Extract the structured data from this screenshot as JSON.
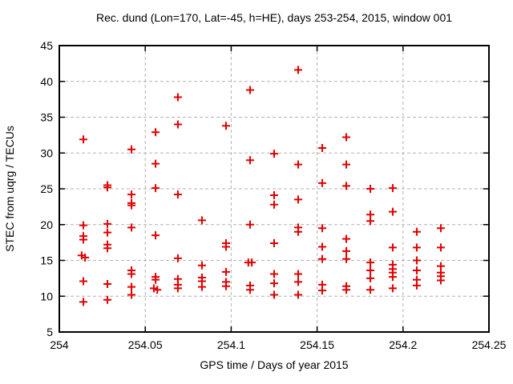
{
  "chart_data": {
    "type": "scatter",
    "title": "Rec. dund (Lon=170, Lat=-45, h=HE), days 253-254, 2015, window 001",
    "xlabel": "GPS time / Days of year 2015",
    "ylabel": "STEC from uqrg / TECUs",
    "xlim": [
      254.0,
      254.25
    ],
    "ylim": [
      5,
      45
    ],
    "grid": true,
    "legend_position": "none",
    "marker": "plus",
    "marker_color": "#e00000",
    "grid_color": "#b2b2b2",
    "xticks": {
      "values": [
        254.0,
        254.05,
        254.1,
        254.15,
        254.2,
        254.25
      ],
      "labels": [
        "254",
        "254.05",
        "254.1",
        "254.15",
        "254.2",
        "254.25"
      ]
    },
    "yticks": {
      "values": [
        5,
        10,
        15,
        20,
        25,
        30,
        35,
        40,
        45
      ],
      "labels": [
        "5",
        "10",
        "15",
        "20",
        "25",
        "30",
        "35",
        "40",
        "45"
      ]
    },
    "points": [
      [
        254.014,
        31.9
      ],
      [
        254.014,
        19.9
      ],
      [
        254.014,
        18.4
      ],
      [
        254.014,
        17.9
      ],
      [
        254.013,
        15.7
      ],
      [
        254.015,
        15.4
      ],
      [
        254.014,
        12.1
      ],
      [
        254.014,
        9.2
      ],
      [
        254.028,
        25.5
      ],
      [
        254.028,
        25.2
      ],
      [
        254.028,
        20.1
      ],
      [
        254.028,
        18.9
      ],
      [
        254.028,
        17.2
      ],
      [
        254.028,
        16.7
      ],
      [
        254.028,
        11.7
      ],
      [
        254.028,
        9.5
      ],
      [
        254.042,
        30.5
      ],
      [
        254.042,
        24.2
      ],
      [
        254.042,
        23.0
      ],
      [
        254.042,
        22.7
      ],
      [
        254.042,
        19.6
      ],
      [
        254.042,
        13.6
      ],
      [
        254.042,
        13.1
      ],
      [
        254.042,
        11.3
      ],
      [
        254.042,
        10.2
      ],
      [
        254.056,
        32.9
      ],
      [
        254.056,
        28.5
      ],
      [
        254.056,
        25.1
      ],
      [
        254.056,
        18.5
      ],
      [
        254.056,
        12.7
      ],
      [
        254.056,
        12.3
      ],
      [
        254.055,
        11.1
      ],
      [
        254.057,
        10.9
      ],
      [
        254.069,
        37.8
      ],
      [
        254.069,
        34.0
      ],
      [
        254.069,
        24.2
      ],
      [
        254.069,
        15.3
      ],
      [
        254.069,
        12.4
      ],
      [
        254.069,
        11.6
      ],
      [
        254.069,
        11.1
      ],
      [
        254.083,
        20.6
      ],
      [
        254.083,
        14.3
      ],
      [
        254.083,
        12.6
      ],
      [
        254.083,
        12.1
      ],
      [
        254.083,
        11.3
      ],
      [
        254.097,
        33.8
      ],
      [
        254.097,
        17.4
      ],
      [
        254.097,
        16.9
      ],
      [
        254.097,
        13.4
      ],
      [
        254.097,
        12.0
      ],
      [
        254.097,
        11.4
      ],
      [
        254.111,
        38.8
      ],
      [
        254.111,
        29.0
      ],
      [
        254.111,
        20.0
      ],
      [
        254.11,
        14.7
      ],
      [
        254.112,
        14.7
      ],
      [
        254.111,
        11.5
      ],
      [
        254.111,
        10.9
      ],
      [
        254.125,
        29.9
      ],
      [
        254.125,
        24.1
      ],
      [
        254.125,
        22.8
      ],
      [
        254.125,
        17.4
      ],
      [
        254.125,
        13.1
      ],
      [
        254.125,
        11.8
      ],
      [
        254.125,
        10.2
      ],
      [
        254.139,
        41.6
      ],
      [
        254.139,
        28.4
      ],
      [
        254.139,
        23.5
      ],
      [
        254.139,
        19.6
      ],
      [
        254.139,
        19.0
      ],
      [
        254.139,
        13.1
      ],
      [
        254.139,
        12.0
      ],
      [
        254.139,
        10.2
      ],
      [
        254.153,
        30.7
      ],
      [
        254.153,
        25.8
      ],
      [
        254.153,
        19.5
      ],
      [
        254.153,
        16.9
      ],
      [
        254.153,
        15.2
      ],
      [
        254.153,
        11.6
      ],
      [
        254.153,
        10.8
      ],
      [
        254.167,
        32.2
      ],
      [
        254.167,
        28.4
      ],
      [
        254.167,
        25.4
      ],
      [
        254.167,
        18.0
      ],
      [
        254.167,
        16.3
      ],
      [
        254.167,
        15.2
      ],
      [
        254.167,
        11.4
      ],
      [
        254.167,
        10.9
      ],
      [
        254.181,
        25.0
      ],
      [
        254.181,
        21.4
      ],
      [
        254.181,
        20.5
      ],
      [
        254.181,
        14.7
      ],
      [
        254.181,
        13.6
      ],
      [
        254.181,
        12.5
      ],
      [
        254.181,
        10.9
      ],
      [
        254.194,
        25.1
      ],
      [
        254.194,
        21.8
      ],
      [
        254.194,
        16.8
      ],
      [
        254.194,
        14.4
      ],
      [
        254.194,
        13.8
      ],
      [
        254.194,
        13.3
      ],
      [
        254.194,
        12.7
      ],
      [
        254.194,
        11.1
      ],
      [
        254.208,
        19.0
      ],
      [
        254.208,
        16.8
      ],
      [
        254.208,
        15.0
      ],
      [
        254.208,
        13.6
      ],
      [
        254.208,
        12.3
      ],
      [
        254.208,
        11.5
      ],
      [
        254.222,
        19.5
      ],
      [
        254.222,
        16.8
      ],
      [
        254.222,
        14.2
      ],
      [
        254.222,
        13.3
      ],
      [
        254.222,
        12.8
      ],
      [
        254.222,
        12.2
      ]
    ]
  }
}
